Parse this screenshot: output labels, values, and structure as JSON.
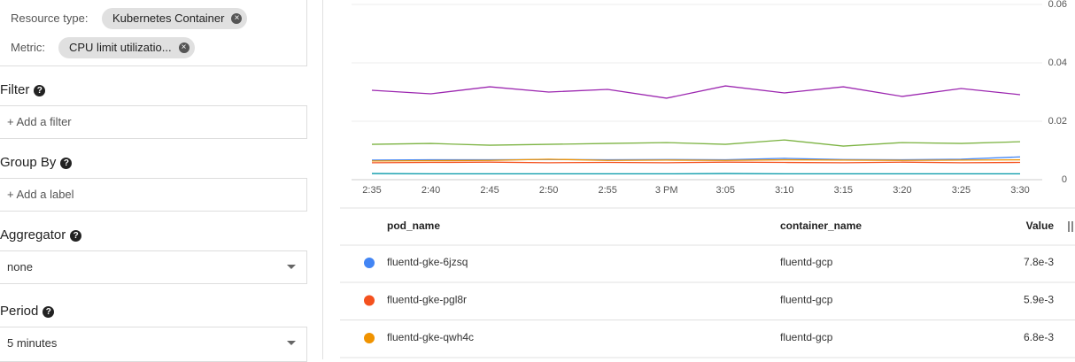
{
  "panel": {
    "resource_type": {
      "label": "Resource type:",
      "chip": "Kubernetes Container"
    },
    "metric": {
      "label": "Metric:",
      "chip": "CPU limit utilizatio..."
    },
    "filter": {
      "label": "Filter",
      "placeholder": "+ Add a filter"
    },
    "group_by": {
      "label": "Group By",
      "placeholder": "+ Add a label"
    },
    "aggregator": {
      "label": "Aggregator",
      "value": "none"
    },
    "period": {
      "label": "Period",
      "value": "5 minutes"
    }
  },
  "chart_data": {
    "type": "line",
    "categories": [
      "2:35",
      "2:40",
      "2:45",
      "2:50",
      "2:55",
      "3 PM",
      "3:05",
      "3:10",
      "3:15",
      "3:20",
      "3:25",
      "3:30"
    ],
    "ylim": [
      0,
      0.06
    ],
    "yticks": [
      0,
      0.02,
      0.04,
      0.06
    ],
    "grid": true,
    "series": [
      {
        "name": "fluentd-gke-6jzsq",
        "color": "#4285f4",
        "values": [
          0.0067,
          0.0068,
          0.0068,
          0.0069,
          0.0068,
          0.0069,
          0.0068,
          0.0073,
          0.0069,
          0.0068,
          0.007,
          0.0078
        ]
      },
      {
        "name": "fluentd-gke-pgl8r",
        "color": "#f4511e",
        "values": [
          0.0058,
          0.0059,
          0.006,
          0.0058,
          0.0059,
          0.0058,
          0.006,
          0.0059,
          0.0058,
          0.006,
          0.0058,
          0.0059
        ]
      },
      {
        "name": "fluentd-gke-qwh4c",
        "color": "#f09300",
        "values": [
          0.0064,
          0.0065,
          0.0066,
          0.007,
          0.0066,
          0.0067,
          0.0066,
          0.0068,
          0.0067,
          0.0066,
          0.0067,
          0.0068
        ]
      },
      {
        "color": "#9c27b0",
        "values": [
          0.0306,
          0.0294,
          0.0318,
          0.03,
          0.0309,
          0.0279,
          0.0321,
          0.0297,
          0.0318,
          0.0285,
          0.0312,
          0.0291
        ]
      },
      {
        "color": "#7cb342",
        "values": [
          0.0121,
          0.0124,
          0.0118,
          0.0121,
          0.0124,
          0.0127,
          0.0121,
          0.0136,
          0.0115,
          0.0127,
          0.0124,
          0.013
        ]
      },
      {
        "color": "#0097a7",
        "values": [
          0.0021,
          0.002,
          0.002,
          0.002,
          0.002,
          0.002,
          0.0021,
          0.002,
          0.002,
          0.002,
          0.002,
          0.002
        ]
      }
    ]
  },
  "table": {
    "columns": [
      "pod_name",
      "container_name",
      "Value"
    ],
    "rows": [
      {
        "container_name": "fluentd-gcp",
        "value": "7.8e-3"
      },
      {
        "container_name": "fluentd-gcp",
        "value": "5.9e-3"
      },
      {
        "container_name": "fluentd-gcp",
        "value": "6.8e-3"
      }
    ]
  }
}
